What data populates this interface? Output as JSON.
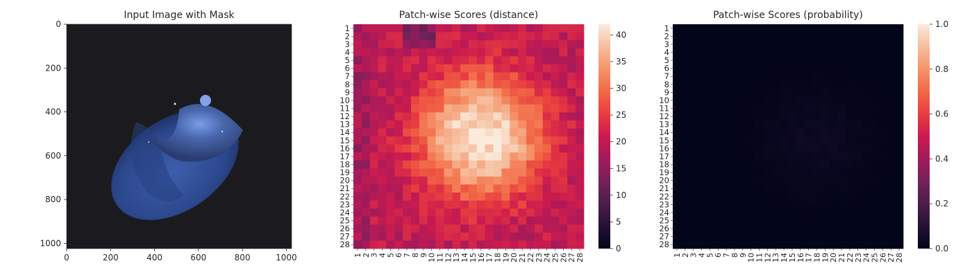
{
  "chart_data": [
    {
      "type": "image",
      "title": "Input Image with Mask",
      "xticks": [
        0,
        200,
        400,
        600,
        800,
        1000
      ],
      "yticks": [
        0,
        200,
        400,
        600,
        800,
        1000
      ],
      "extent": [
        1024,
        1024
      ]
    },
    {
      "type": "heatmap",
      "title": "Patch-wise Scores (distance)",
      "rows": 28,
      "cols": 28,
      "row_labels": [
        "1",
        "2",
        "3",
        "4",
        "5",
        "6",
        "7",
        "8",
        "9",
        "10",
        "11",
        "12",
        "13",
        "14",
        "15",
        "16",
        "17",
        "18",
        "19",
        "20",
        "21",
        "22",
        "23",
        "24",
        "25",
        "26",
        "27",
        "28"
      ],
      "col_labels": [
        "1",
        "2",
        "3",
        "4",
        "5",
        "6",
        "7",
        "8",
        "9",
        "10",
        "11",
        "12",
        "13",
        "14",
        "15",
        "16",
        "17",
        "18",
        "19",
        "20",
        "21",
        "22",
        "23",
        "24",
        "25",
        "26",
        "27",
        "28"
      ],
      "colorbar": {
        "min": 0,
        "max": 42,
        "ticks": [
          0,
          5,
          10,
          15,
          20,
          25,
          30,
          35,
          40
        ]
      },
      "colormap": "rocket",
      "region": {
        "background": 20,
        "peak": 41,
        "center_row": 14.5,
        "center_col": 16
      }
    },
    {
      "type": "heatmap",
      "title": "Patch-wise Scores (probability)",
      "rows": 28,
      "cols": 28,
      "row_labels": [
        "1",
        "2",
        "3",
        "4",
        "5",
        "6",
        "7",
        "8",
        "9",
        "10",
        "11",
        "12",
        "13",
        "14",
        "15",
        "16",
        "17",
        "18",
        "19",
        "20",
        "21",
        "22",
        "23",
        "24",
        "25",
        "26",
        "27",
        "28"
      ],
      "col_labels": [
        "1",
        "2",
        "3",
        "4",
        "5",
        "6",
        "7",
        "8",
        "9",
        "10",
        "11",
        "12",
        "13",
        "14",
        "15",
        "16",
        "17",
        "18",
        "19",
        "20",
        "21",
        "22",
        "23",
        "24",
        "25",
        "26",
        "27",
        "28"
      ],
      "colorbar": {
        "min": 0.0,
        "max": 1.0,
        "ticks": [
          0.0,
          0.2,
          0.4,
          0.6,
          0.8,
          1.0
        ],
        "tick_labels": [
          "0.0",
          "0.2",
          "0.4",
          "0.6",
          "0.8",
          "1.0"
        ]
      },
      "colormap": "rocket",
      "region": {
        "background": 0.0,
        "peak": 0.04
      }
    }
  ],
  "colors": {
    "hazelnut": "#2f4a8e",
    "hazelnut_highlight": "#5e7fd0",
    "background": "#1b1b1f",
    "text": "#262626"
  }
}
